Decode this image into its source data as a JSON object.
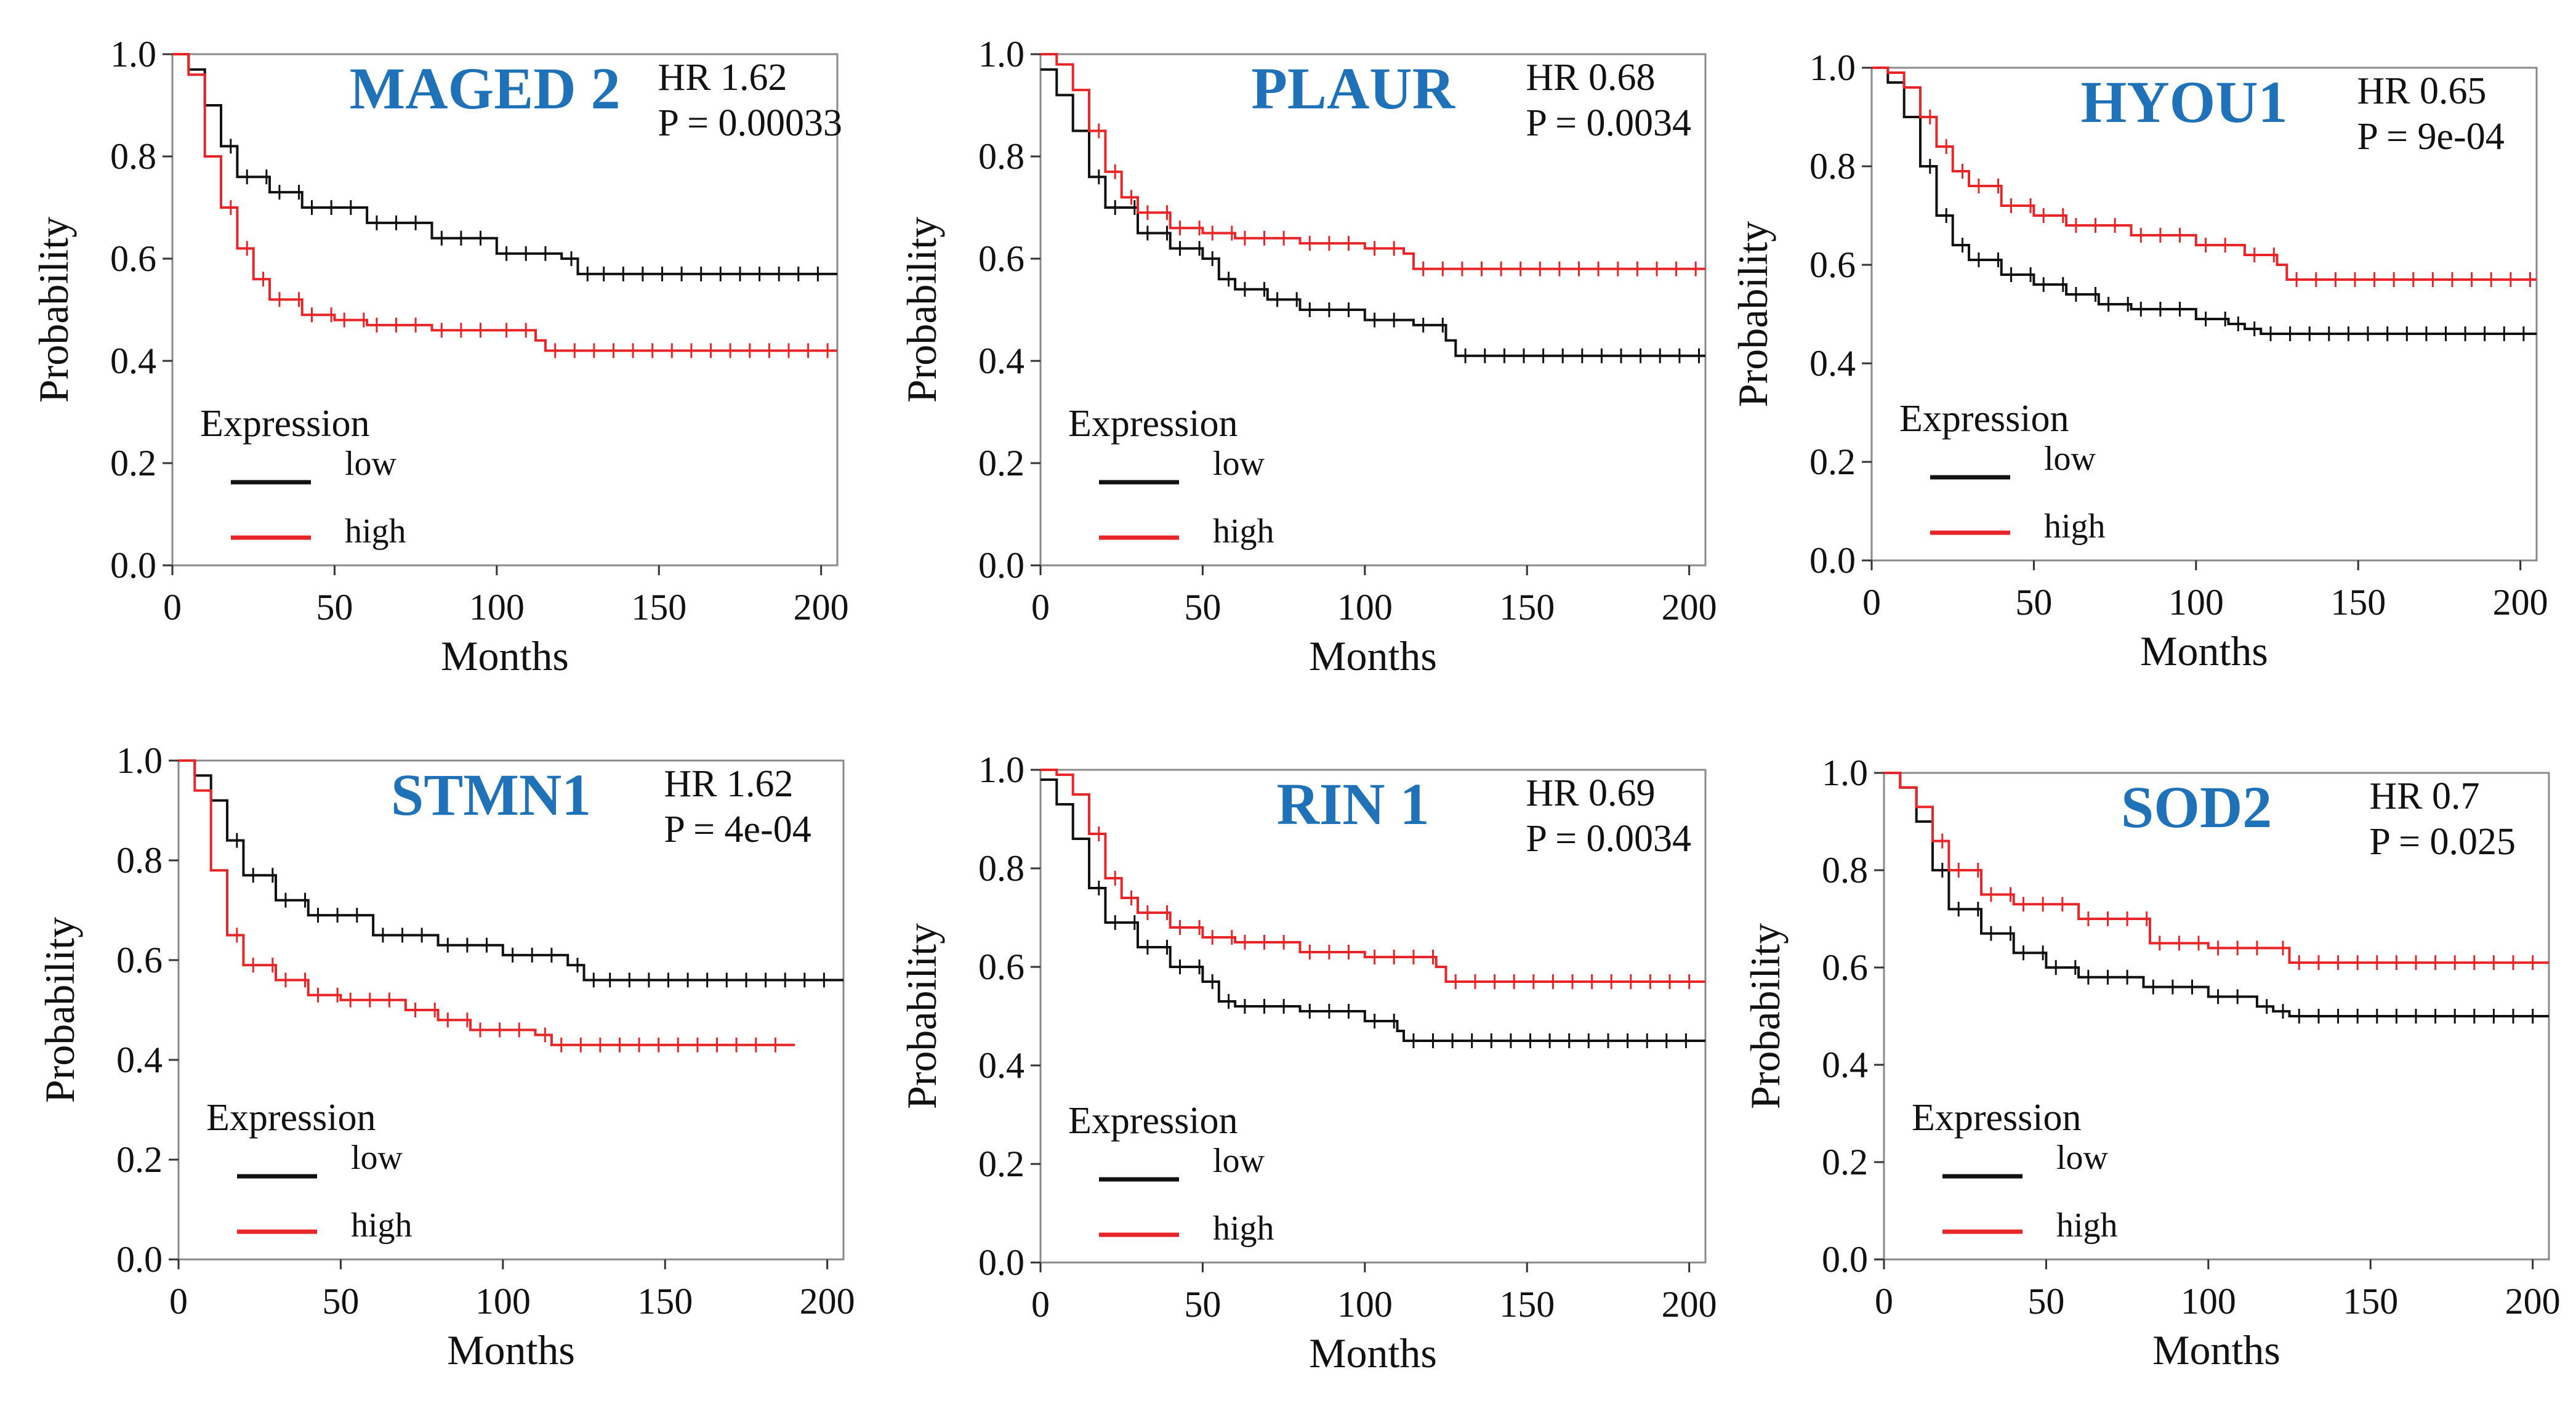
{
  "colors": {
    "low": "#111111",
    "high": "#e8262a",
    "title": "#1f72b8",
    "frame": "#8a8a8a"
  },
  "chart_data": [
    {
      "type": "line",
      "title": "MAGED 2",
      "hr_text": "HR 1.62",
      "p_text": "P = 0.00033",
      "xlabel": "Months",
      "ylabel": "Probability",
      "xlim": [
        0,
        205
      ],
      "ylim": [
        0.0,
        1.0
      ],
      "x_ticks": [
        0,
        50,
        100,
        150,
        200
      ],
      "y_ticks": [
        "0.0",
        "0.2",
        "0.4",
        "0.6",
        "0.8",
        "1.0"
      ],
      "legend_title": "Expression",
      "series": [
        {
          "name": "low",
          "x": [
            0,
            5,
            10,
            15,
            20,
            30,
            40,
            60,
            80,
            100,
            120,
            125,
            130,
            205
          ],
          "y": [
            1.0,
            0.97,
            0.9,
            0.82,
            0.76,
            0.73,
            0.7,
            0.67,
            0.64,
            0.61,
            0.6,
            0.57,
            0.57,
            0.57
          ]
        },
        {
          "name": "high",
          "x": [
            0,
            5,
            10,
            15,
            20,
            25,
            30,
            40,
            50,
            60,
            80,
            100,
            112,
            115,
            205
          ],
          "y": [
            1.0,
            0.96,
            0.8,
            0.7,
            0.62,
            0.56,
            0.52,
            0.49,
            0.48,
            0.47,
            0.46,
            0.46,
            0.44,
            0.42,
            0.42
          ]
        }
      ]
    },
    {
      "type": "line",
      "title": "PLAUR",
      "hr_text": "HR 0.68",
      "p_text": "P = 0.0034",
      "xlabel": "Months",
      "ylabel": "Probability",
      "xlim": [
        0,
        205
      ],
      "ylim": [
        0.0,
        1.0
      ],
      "x_ticks": [
        0,
        50,
        100,
        150,
        200
      ],
      "y_ticks": [
        "0.0",
        "0.2",
        "0.4",
        "0.6",
        "0.8",
        "1.0"
      ],
      "legend_title": "Expression",
      "series": [
        {
          "name": "low",
          "x": [
            0,
            5,
            10,
            15,
            20,
            30,
            40,
            50,
            55,
            60,
            70,
            80,
            100,
            115,
            125,
            128,
            205
          ],
          "y": [
            0.97,
            0.92,
            0.85,
            0.76,
            0.7,
            0.65,
            0.62,
            0.6,
            0.56,
            0.54,
            0.52,
            0.5,
            0.48,
            0.47,
            0.44,
            0.41,
            0.41
          ]
        },
        {
          "name": "high",
          "x": [
            0,
            5,
            10,
            15,
            20,
            25,
            30,
            40,
            50,
            60,
            80,
            100,
            112,
            115,
            205
          ],
          "y": [
            1.0,
            0.98,
            0.93,
            0.85,
            0.77,
            0.72,
            0.69,
            0.66,
            0.65,
            0.64,
            0.63,
            0.62,
            0.61,
            0.58,
            0.58
          ]
        }
      ]
    },
    {
      "type": "line",
      "title": "HYOU1",
      "hr_text": "HR 0.65",
      "p_text": "P = 9e-04",
      "xlabel": "Months",
      "ylabel": "Probability",
      "xlim": [
        0,
        205
      ],
      "ylim": [
        0.0,
        1.0
      ],
      "x_ticks": [
        0,
        50,
        100,
        150,
        200
      ],
      "y_ticks": [
        "0.0",
        "0.2",
        "0.4",
        "0.6",
        "0.8",
        "1.0"
      ],
      "legend_title": "Expression",
      "series": [
        {
          "name": "low",
          "x": [
            0,
            5,
            10,
            15,
            20,
            25,
            30,
            40,
            50,
            60,
            70,
            80,
            100,
            110,
            115,
            120,
            205
          ],
          "y": [
            1.0,
            0.97,
            0.9,
            0.8,
            0.7,
            0.64,
            0.61,
            0.58,
            0.56,
            0.54,
            0.52,
            0.51,
            0.49,
            0.48,
            0.47,
            0.46,
            0.46
          ]
        },
        {
          "name": "high",
          "x": [
            0,
            5,
            10,
            15,
            20,
            25,
            30,
            40,
            50,
            60,
            80,
            100,
            115,
            125,
            128,
            205
          ],
          "y": [
            1.0,
            0.99,
            0.96,
            0.9,
            0.84,
            0.79,
            0.76,
            0.72,
            0.7,
            0.68,
            0.66,
            0.64,
            0.62,
            0.6,
            0.57,
            0.57
          ]
        }
      ]
    },
    {
      "type": "line",
      "title": "STMN1",
      "hr_text": "HR 1.62",
      "p_text": "P = 4e-04",
      "xlabel": "Months",
      "ylabel": "Probability",
      "xlim": [
        0,
        205
      ],
      "ylim": [
        0.0,
        1.0
      ],
      "x_ticks": [
        0,
        50,
        100,
        150,
        200
      ],
      "y_ticks": [
        "0.0",
        "0.2",
        "0.4",
        "0.6",
        "0.8",
        "1.0"
      ],
      "legend_title": "Expression",
      "series": [
        {
          "name": "low",
          "x": [
            0,
            5,
            10,
            15,
            20,
            30,
            40,
            60,
            80,
            100,
            120,
            125,
            130,
            205
          ],
          "y": [
            1.0,
            0.97,
            0.92,
            0.84,
            0.77,
            0.72,
            0.69,
            0.65,
            0.63,
            0.61,
            0.59,
            0.56,
            0.56,
            0.56
          ]
        },
        {
          "name": "high",
          "x": [
            0,
            5,
            10,
            15,
            20,
            30,
            40,
            50,
            70,
            80,
            90,
            110,
            115,
            190
          ],
          "y": [
            1.0,
            0.94,
            0.78,
            0.65,
            0.59,
            0.56,
            0.53,
            0.52,
            0.5,
            0.48,
            0.46,
            0.45,
            0.43,
            0.43
          ]
        }
      ]
    },
    {
      "type": "line",
      "title": "RIN 1",
      "hr_text": "HR 0.69",
      "p_text": "P = 0.0034",
      "xlabel": "Months",
      "ylabel": "Probability",
      "xlim": [
        0,
        205
      ],
      "ylim": [
        0.0,
        1.0
      ],
      "x_ticks": [
        0,
        50,
        100,
        150,
        200
      ],
      "y_ticks": [
        "0.0",
        "0.2",
        "0.4",
        "0.6",
        "0.8",
        "1.0"
      ],
      "legend_title": "Expression",
      "series": [
        {
          "name": "low",
          "x": [
            0,
            5,
            10,
            15,
            20,
            30,
            40,
            50,
            55,
            60,
            80,
            100,
            110,
            112,
            205
          ],
          "y": [
            0.98,
            0.93,
            0.86,
            0.76,
            0.69,
            0.64,
            0.6,
            0.57,
            0.53,
            0.52,
            0.51,
            0.49,
            0.47,
            0.45,
            0.45
          ]
        },
        {
          "name": "high",
          "x": [
            0,
            5,
            10,
            15,
            20,
            25,
            30,
            40,
            50,
            60,
            80,
            100,
            122,
            125,
            205
          ],
          "y": [
            1.0,
            0.99,
            0.95,
            0.87,
            0.78,
            0.74,
            0.71,
            0.68,
            0.66,
            0.65,
            0.63,
            0.62,
            0.6,
            0.57,
            0.57
          ]
        }
      ]
    },
    {
      "type": "line",
      "title": "SOD2",
      "hr_text": "HR 0.7",
      "p_text": "P = 0.025",
      "xlabel": "Months",
      "ylabel": "Probability",
      "xlim": [
        0,
        205
      ],
      "ylim": [
        0.0,
        1.0
      ],
      "x_ticks": [
        0,
        50,
        100,
        150,
        200
      ],
      "y_ticks": [
        "0.0",
        "0.2",
        "0.4",
        "0.6",
        "0.8",
        "1.0"
      ],
      "legend_title": "Expression",
      "series": [
        {
          "name": "low",
          "x": [
            0,
            5,
            10,
            15,
            20,
            30,
            40,
            50,
            60,
            80,
            100,
            115,
            120,
            125,
            205
          ],
          "y": [
            1.0,
            0.97,
            0.9,
            0.8,
            0.72,
            0.67,
            0.63,
            0.6,
            0.58,
            0.56,
            0.54,
            0.52,
            0.51,
            0.5,
            0.5
          ]
        },
        {
          "name": "high",
          "x": [
            0,
            5,
            10,
            15,
            20,
            30,
            40,
            60,
            78,
            82,
            100,
            120,
            125,
            205
          ],
          "y": [
            1.0,
            0.97,
            0.93,
            0.86,
            0.8,
            0.75,
            0.73,
            0.7,
            0.7,
            0.65,
            0.64,
            0.64,
            0.61,
            0.61
          ]
        }
      ]
    }
  ]
}
